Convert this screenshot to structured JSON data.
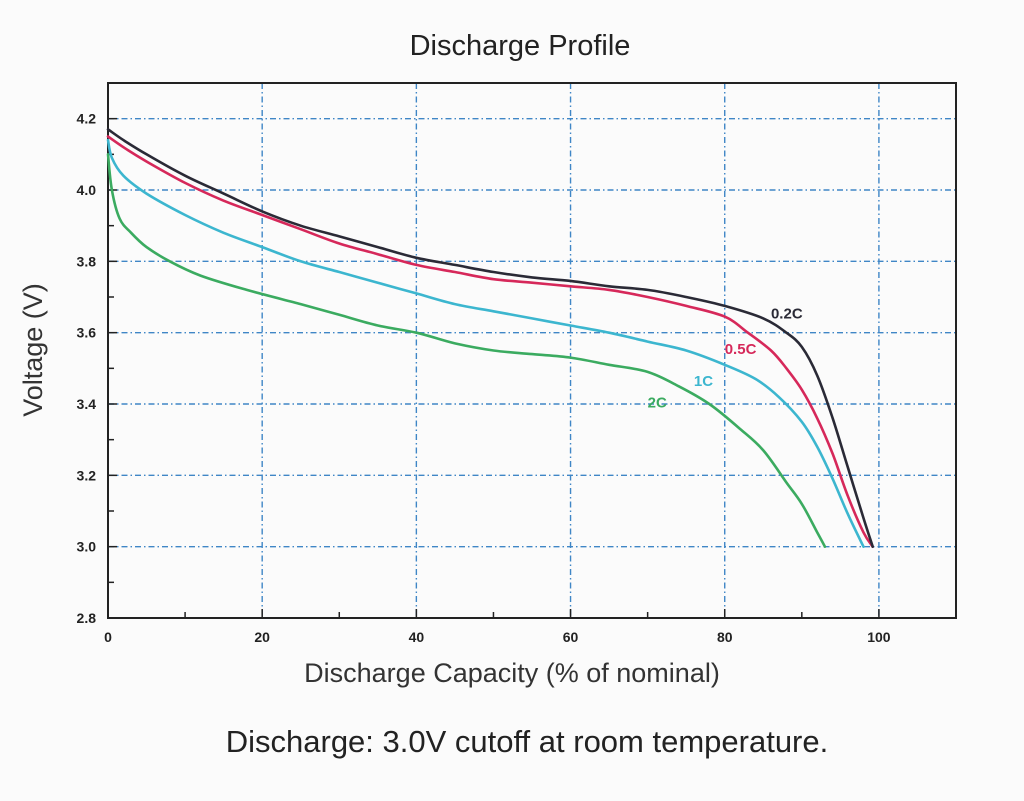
{
  "chart_data": {
    "type": "line",
    "title": "Discharge Profile",
    "xlabel": "Discharge Capacity (% of nominal)",
    "ylabel": "Voltage (V)",
    "caption": "Discharge: 3.0V cutoff at room temperature.",
    "xlim": [
      0,
      110
    ],
    "ylim": [
      2.8,
      4.3
    ],
    "xticks": [
      0,
      20,
      40,
      60,
      80,
      100
    ],
    "xtick_labels": [
      "0",
      "20",
      "40",
      "60",
      "80",
      "100"
    ],
    "yticks": [
      2.8,
      3.0,
      3.2,
      3.4,
      3.6,
      3.8,
      4.0,
      4.2
    ],
    "ytick_labels": [
      "2.8",
      "3.0",
      "3.2",
      "3.4",
      "3.6",
      "3.8",
      "4.0",
      "4.2"
    ],
    "grid": true,
    "series": [
      {
        "name": "0.2C",
        "color": "#2a2a36",
        "points": [
          [
            0,
            4.17
          ],
          [
            2,
            4.14
          ],
          [
            5,
            4.1
          ],
          [
            10,
            4.04
          ],
          [
            15,
            3.99
          ],
          [
            20,
            3.94
          ],
          [
            25,
            3.9
          ],
          [
            30,
            3.87
          ],
          [
            35,
            3.84
          ],
          [
            40,
            3.81
          ],
          [
            45,
            3.79
          ],
          [
            50,
            3.77
          ],
          [
            55,
            3.755
          ],
          [
            60,
            3.745
          ],
          [
            65,
            3.73
          ],
          [
            70,
            3.72
          ],
          [
            75,
            3.7
          ],
          [
            80,
            3.675
          ],
          [
            85,
            3.64
          ],
          [
            88,
            3.6
          ],
          [
            90,
            3.56
          ],
          [
            92,
            3.48
          ],
          [
            94,
            3.36
          ],
          [
            96,
            3.22
          ],
          [
            98,
            3.08
          ],
          [
            99.2,
            3.0
          ]
        ]
      },
      {
        "name": "0.5C",
        "color": "#d6285a",
        "points": [
          [
            0,
            4.15
          ],
          [
            2,
            4.12
          ],
          [
            5,
            4.08
          ],
          [
            10,
            4.02
          ],
          [
            15,
            3.97
          ],
          [
            20,
            3.93
          ],
          [
            25,
            3.89
          ],
          [
            30,
            3.85
          ],
          [
            35,
            3.82
          ],
          [
            40,
            3.79
          ],
          [
            45,
            3.77
          ],
          [
            50,
            3.75
          ],
          [
            55,
            3.74
          ],
          [
            60,
            3.73
          ],
          [
            65,
            3.72
          ],
          [
            70,
            3.7
          ],
          [
            75,
            3.675
          ],
          [
            80,
            3.645
          ],
          [
            83,
            3.6
          ],
          [
            86,
            3.55
          ],
          [
            88,
            3.5
          ],
          [
            90,
            3.44
          ],
          [
            92,
            3.36
          ],
          [
            94,
            3.26
          ],
          [
            96,
            3.14
          ],
          [
            98,
            3.04
          ],
          [
            99.2,
            3.0
          ]
        ]
      },
      {
        "name": "1C",
        "color": "#3cb6cf",
        "points": [
          [
            0,
            4.14
          ],
          [
            0.5,
            4.09
          ],
          [
            2,
            4.04
          ],
          [
            5,
            3.99
          ],
          [
            10,
            3.93
          ],
          [
            15,
            3.88
          ],
          [
            20,
            3.84
          ],
          [
            25,
            3.8
          ],
          [
            30,
            3.77
          ],
          [
            35,
            3.74
          ],
          [
            40,
            3.71
          ],
          [
            45,
            3.68
          ],
          [
            50,
            3.66
          ],
          [
            55,
            3.64
          ],
          [
            60,
            3.62
          ],
          [
            65,
            3.6
          ],
          [
            70,
            3.575
          ],
          [
            75,
            3.55
          ],
          [
            80,
            3.51
          ],
          [
            84,
            3.47
          ],
          [
            87,
            3.42
          ],
          [
            90,
            3.35
          ],
          [
            92,
            3.28
          ],
          [
            94,
            3.19
          ],
          [
            96,
            3.09
          ],
          [
            98,
            3.0
          ]
        ]
      },
      {
        "name": "2C",
        "color": "#3bab60",
        "points": [
          [
            0,
            4.1
          ],
          [
            0.5,
            4.0
          ],
          [
            1.5,
            3.92
          ],
          [
            3,
            3.88
          ],
          [
            5,
            3.84
          ],
          [
            8,
            3.8
          ],
          [
            12,
            3.76
          ],
          [
            18,
            3.72
          ],
          [
            25,
            3.68
          ],
          [
            30,
            3.65
          ],
          [
            35,
            3.62
          ],
          [
            40,
            3.6
          ],
          [
            45,
            3.57
          ],
          [
            50,
            3.55
          ],
          [
            55,
            3.54
          ],
          [
            60,
            3.53
          ],
          [
            65,
            3.51
          ],
          [
            70,
            3.49
          ],
          [
            74,
            3.45
          ],
          [
            78,
            3.4
          ],
          [
            82,
            3.33
          ],
          [
            85,
            3.27
          ],
          [
            88,
            3.18
          ],
          [
            90,
            3.12
          ],
          [
            92,
            3.04
          ],
          [
            93,
            3.0
          ]
        ]
      }
    ],
    "series_label_positions": [
      [
        86,
        3.64
      ],
      [
        80,
        3.54
      ],
      [
        76,
        3.45
      ],
      [
        70,
        3.39
      ]
    ]
  }
}
